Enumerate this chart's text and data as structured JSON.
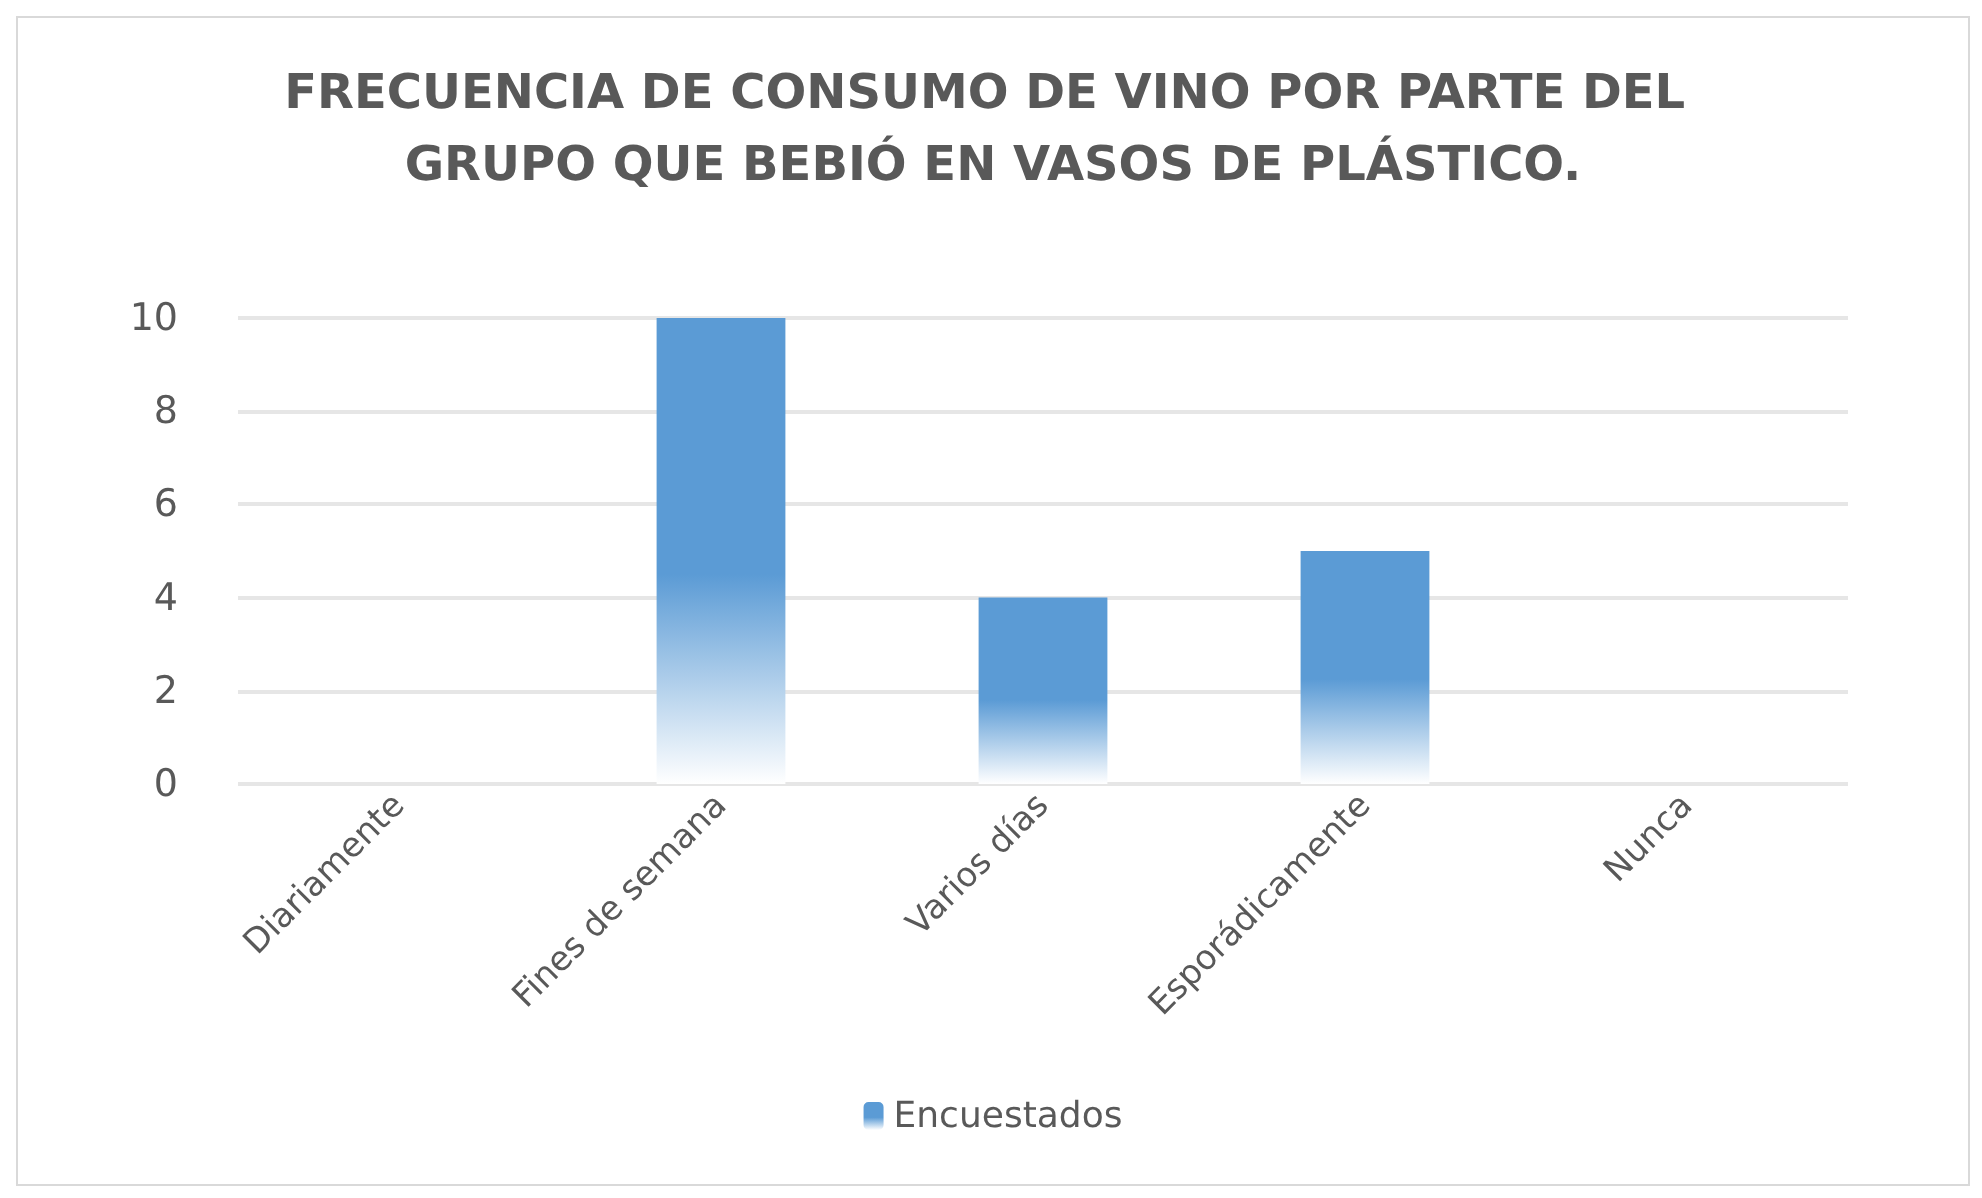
{
  "chart_data": {
    "type": "bar",
    "title": "FRECUENCIA DE CONSUMO DE VINO POR PARTE DEL GRUPO QUE BEBIÓ EN VASOS DE PLÁSTICO.",
    "categories": [
      "Diariamente",
      "Fines de semana",
      "Varios días",
      "Esporádicamente",
      "Nunca"
    ],
    "series": [
      {
        "name": "Encuestados",
        "color": "#5b9bd5",
        "values": [
          0,
          10,
          4,
          5,
          0
        ]
      }
    ],
    "ylim": [
      0,
      10
    ],
    "yticks": [
      0,
      2,
      4,
      6,
      8,
      10
    ],
    "grid": "y",
    "legend": "bottom"
  }
}
